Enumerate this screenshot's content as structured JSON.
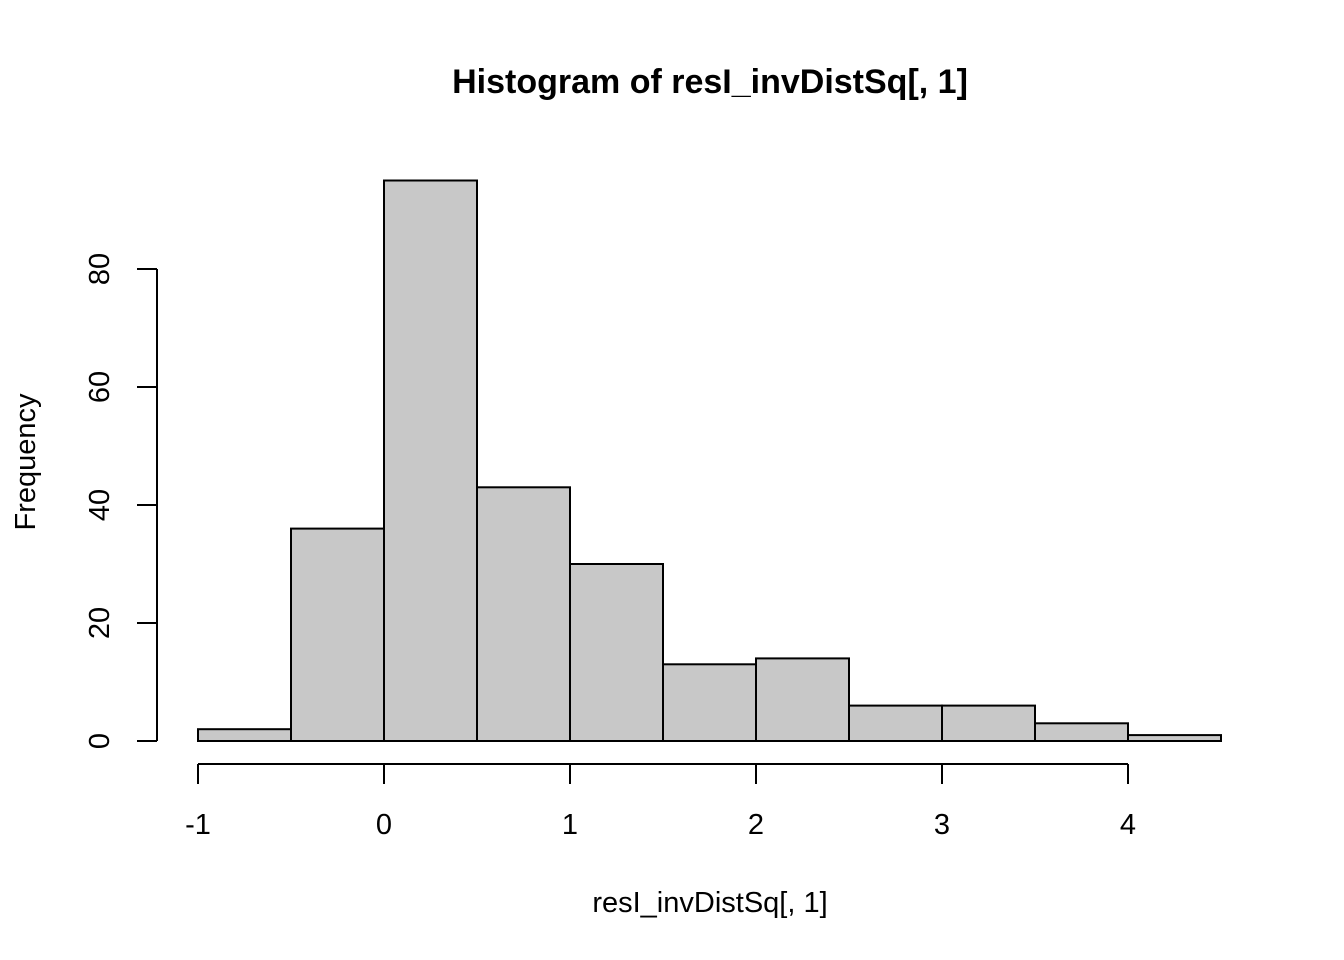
{
  "chart_data": {
    "type": "bar",
    "title": "Histogram of resI_invDistSq[, 1]",
    "xlabel": "resI_invDistSq[, 1]",
    "ylabel": "Frequency",
    "bins": [
      {
        "start": -1.0,
        "end": -0.5,
        "count": 2
      },
      {
        "start": -0.5,
        "end": 0.0,
        "count": 36
      },
      {
        "start": 0.0,
        "end": 0.5,
        "count": 95
      },
      {
        "start": 0.5,
        "end": 1.0,
        "count": 43
      },
      {
        "start": 1.0,
        "end": 1.5,
        "count": 30
      },
      {
        "start": 1.5,
        "end": 2.0,
        "count": 13
      },
      {
        "start": 2.0,
        "end": 2.5,
        "count": 14
      },
      {
        "start": 2.5,
        "end": 3.0,
        "count": 6
      },
      {
        "start": 3.0,
        "end": 3.5,
        "count": 6
      },
      {
        "start": 3.5,
        "end": 4.0,
        "count": 3
      },
      {
        "start": 4.0,
        "end": 4.5,
        "count": 1
      }
    ],
    "xlim": [
      -1,
      4.5
    ],
    "ylim": [
      0,
      95
    ],
    "x_ticks": [
      -1,
      0,
      1,
      2,
      3,
      4
    ],
    "y_ticks": [
      0,
      20,
      40,
      60,
      80
    ],
    "grid": false,
    "bar_color": "#c8c8c8",
    "edge_color": "#000000"
  }
}
